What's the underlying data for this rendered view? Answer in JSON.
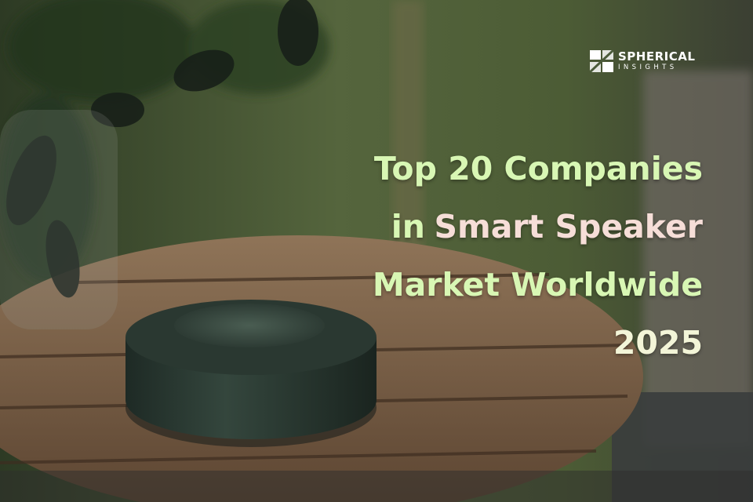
{
  "logo": {
    "name": "SPHERICAL",
    "tagline": "INSIGHTS"
  },
  "title": {
    "lines": [
      [
        "Top 20 Companies"
      ],
      [
        "in",
        "Smart Speaker"
      ],
      [
        "Market Worldwide"
      ],
      [
        "2025"
      ]
    ]
  }
}
